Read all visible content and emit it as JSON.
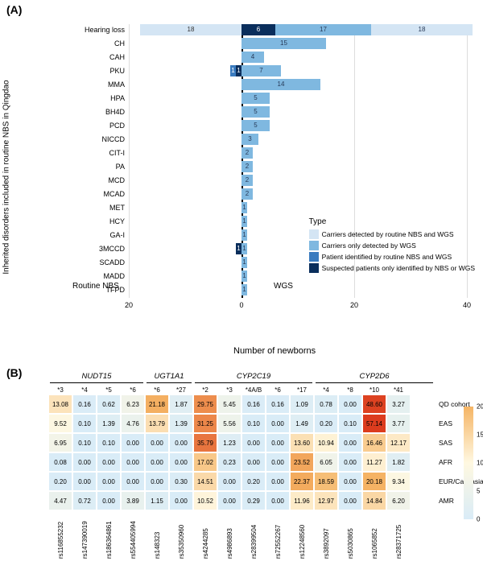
{
  "panelA": {
    "label": "(A)",
    "y_title": "Inherited disorders included in routine NBS in Qingdao",
    "x_title": "Number of newborns",
    "side_left": "Routine NBS",
    "side_right": "WGS",
    "xlim": [
      -20,
      40
    ],
    "xticks": [
      -20,
      0,
      20,
      40
    ],
    "xtick_labels": [
      "20",
      "0",
      "20",
      "40"
    ],
    "legend_title": "Type",
    "legend": [
      {
        "label": "Carriers detected by routine NBS and WGS",
        "color": "#d4e5f4"
      },
      {
        "label": "Carriers only detected by WGS",
        "color": "#7fb8e0"
      },
      {
        "label": "Patient identified by routine NBS and WGS",
        "color": "#3a7bbf"
      },
      {
        "label": "Suspected patients only identified by NBS or WGS",
        "color": "#0a2e5c"
      }
    ],
    "colors": {
      "c1": "#d4e5f4",
      "c2": "#7fb8e0",
      "c3": "#3a7bbf",
      "c4": "#0a2e5c"
    },
    "disorders": [
      {
        "name": "Hearing loss",
        "left": [
          {
            "w": 18,
            "c": "c1",
            "v": "18"
          }
        ],
        "right": [
          {
            "w": 6,
            "c": "c4",
            "v": "6"
          },
          {
            "w": 17,
            "c": "c2",
            "v": "17"
          },
          {
            "w": 18,
            "c": "c1",
            "v": "18"
          }
        ]
      },
      {
        "name": "CH",
        "left": [],
        "right": [
          {
            "w": 15,
            "c": "c2",
            "v": "15"
          }
        ]
      },
      {
        "name": "CAH",
        "left": [],
        "right": [
          {
            "w": 4,
            "c": "c2",
            "v": "4"
          }
        ]
      },
      {
        "name": "PKU",
        "left": [
          {
            "w": 1,
            "c": "c4",
            "v": "1"
          },
          {
            "w": 1,
            "c": "c3",
            "v": "1"
          }
        ],
        "right": [
          {
            "w": 7,
            "c": "c2",
            "v": "7"
          }
        ]
      },
      {
        "name": "MMA",
        "left": [],
        "right": [
          {
            "w": 14,
            "c": "c2",
            "v": "14"
          }
        ]
      },
      {
        "name": "HPA",
        "left": [],
        "right": [
          {
            "w": 5,
            "c": "c2",
            "v": "5"
          }
        ]
      },
      {
        "name": "BH4D",
        "left": [],
        "right": [
          {
            "w": 5,
            "c": "c2",
            "v": "5"
          }
        ]
      },
      {
        "name": "PCD",
        "left": [],
        "right": [
          {
            "w": 5,
            "c": "c2",
            "v": "5"
          }
        ]
      },
      {
        "name": "NICCD",
        "left": [],
        "right": [
          {
            "w": 3,
            "c": "c2",
            "v": "3"
          }
        ]
      },
      {
        "name": "CIT-I",
        "left": [],
        "right": [
          {
            "w": 2,
            "c": "c2",
            "v": "2"
          }
        ]
      },
      {
        "name": "PA",
        "left": [],
        "right": [
          {
            "w": 2,
            "c": "c2",
            "v": "2"
          }
        ]
      },
      {
        "name": "MCD",
        "left": [],
        "right": [
          {
            "w": 2,
            "c": "c2",
            "v": "2"
          }
        ]
      },
      {
        "name": "MCAD",
        "left": [],
        "right": [
          {
            "w": 2,
            "c": "c2",
            "v": "2"
          }
        ]
      },
      {
        "name": "MET",
        "left": [],
        "right": [
          {
            "w": 1,
            "c": "c2",
            "v": "1"
          }
        ]
      },
      {
        "name": "HCY",
        "left": [],
        "right": [
          {
            "w": 1,
            "c": "c2",
            "v": "1"
          }
        ]
      },
      {
        "name": "GA-I",
        "left": [],
        "right": [
          {
            "w": 1,
            "c": "c2",
            "v": "1"
          }
        ]
      },
      {
        "name": "3MCCD",
        "left": [
          {
            "w": 1,
            "c": "c4",
            "v": "1"
          }
        ],
        "right": [
          {
            "w": 1,
            "c": "c2",
            "v": "1"
          }
        ]
      },
      {
        "name": "SCADD",
        "left": [],
        "right": [
          {
            "w": 1,
            "c": "c2",
            "v": "1"
          }
        ]
      },
      {
        "name": "MADD",
        "left": [],
        "right": [
          {
            "w": 1,
            "c": "c2",
            "v": "1"
          }
        ]
      },
      {
        "name": "TFPD",
        "left": [],
        "right": [
          {
            "w": 1,
            "c": "c2",
            "v": "1"
          }
        ]
      }
    ]
  },
  "panelB": {
    "label": "(B)",
    "genes": [
      {
        "name": "NUDT15",
        "start": 0,
        "span": 4
      },
      {
        "name": "UGT1A1",
        "start": 4,
        "span": 2
      },
      {
        "name": "CYP2C19",
        "start": 6,
        "span": 5
      },
      {
        "name": "CYP2D6",
        "start": 11,
        "span": 5
      }
    ],
    "star_alleles": [
      "*3",
      "*4",
      "*5",
      "*6",
      "*6",
      "*27",
      "*2",
      "*3",
      "*4A/B",
      "*6",
      "*17",
      "*4",
      "*8",
      "*10",
      "*41"
    ],
    "rs_ids": [
      "rs116855232",
      "rs147390019",
      "rs186364861",
      "rs554405994",
      "rs148323",
      "rs35350960",
      "rs4244285",
      "rs4986893",
      "rs28399504",
      "rs72552267",
      "rs12248560",
      "rs3892097",
      "rs5030865",
      "rs1065852",
      "rs28371725"
    ],
    "rows": [
      "QD cohort",
      "EAS",
      "SAS",
      "AFR",
      "EUR/Caucasian",
      "AMR"
    ],
    "values": [
      [
        13.08,
        0.16,
        0.62,
        6.23,
        21.18,
        1.87,
        29.75,
        5.45,
        0.16,
        0.16,
        1.09,
        0.78,
        0.0,
        48.6,
        3.27
      ],
      [
        9.52,
        0.1,
        1.39,
        4.76,
        13.79,
        1.39,
        31.25,
        5.56,
        0.1,
        0.0,
        1.49,
        0.2,
        0.1,
        57.14,
        3.77
      ],
      [
        6.95,
        0.1,
        0.1,
        0.0,
        0.0,
        0.0,
        35.79,
        1.23,
        0.0,
        0.0,
        13.6,
        10.94,
        0.0,
        16.46,
        12.17
      ],
      [
        0.08,
        0.0,
        0.0,
        0.0,
        0.0,
        0.0,
        17.02,
        0.23,
        0.0,
        0.0,
        23.52,
        6.05,
        0.0,
        11.27,
        1.82
      ],
      [
        0.2,
        0.0,
        0.0,
        0.0,
        0.0,
        0.3,
        14.51,
        0.0,
        0.2,
        0.0,
        22.37,
        18.59,
        0.0,
        20.18,
        9.34
      ],
      [
        4.47,
        0.72,
        0.0,
        3.89,
        1.15,
        0.0,
        10.52,
        0.0,
        0.29,
        0.0,
        11.96,
        12.97,
        0.0,
        14.84,
        6.2
      ]
    ],
    "scale": {
      "min": 0,
      "max": 20,
      "ticks": [
        0,
        5,
        10,
        15,
        20
      ]
    }
  }
}
